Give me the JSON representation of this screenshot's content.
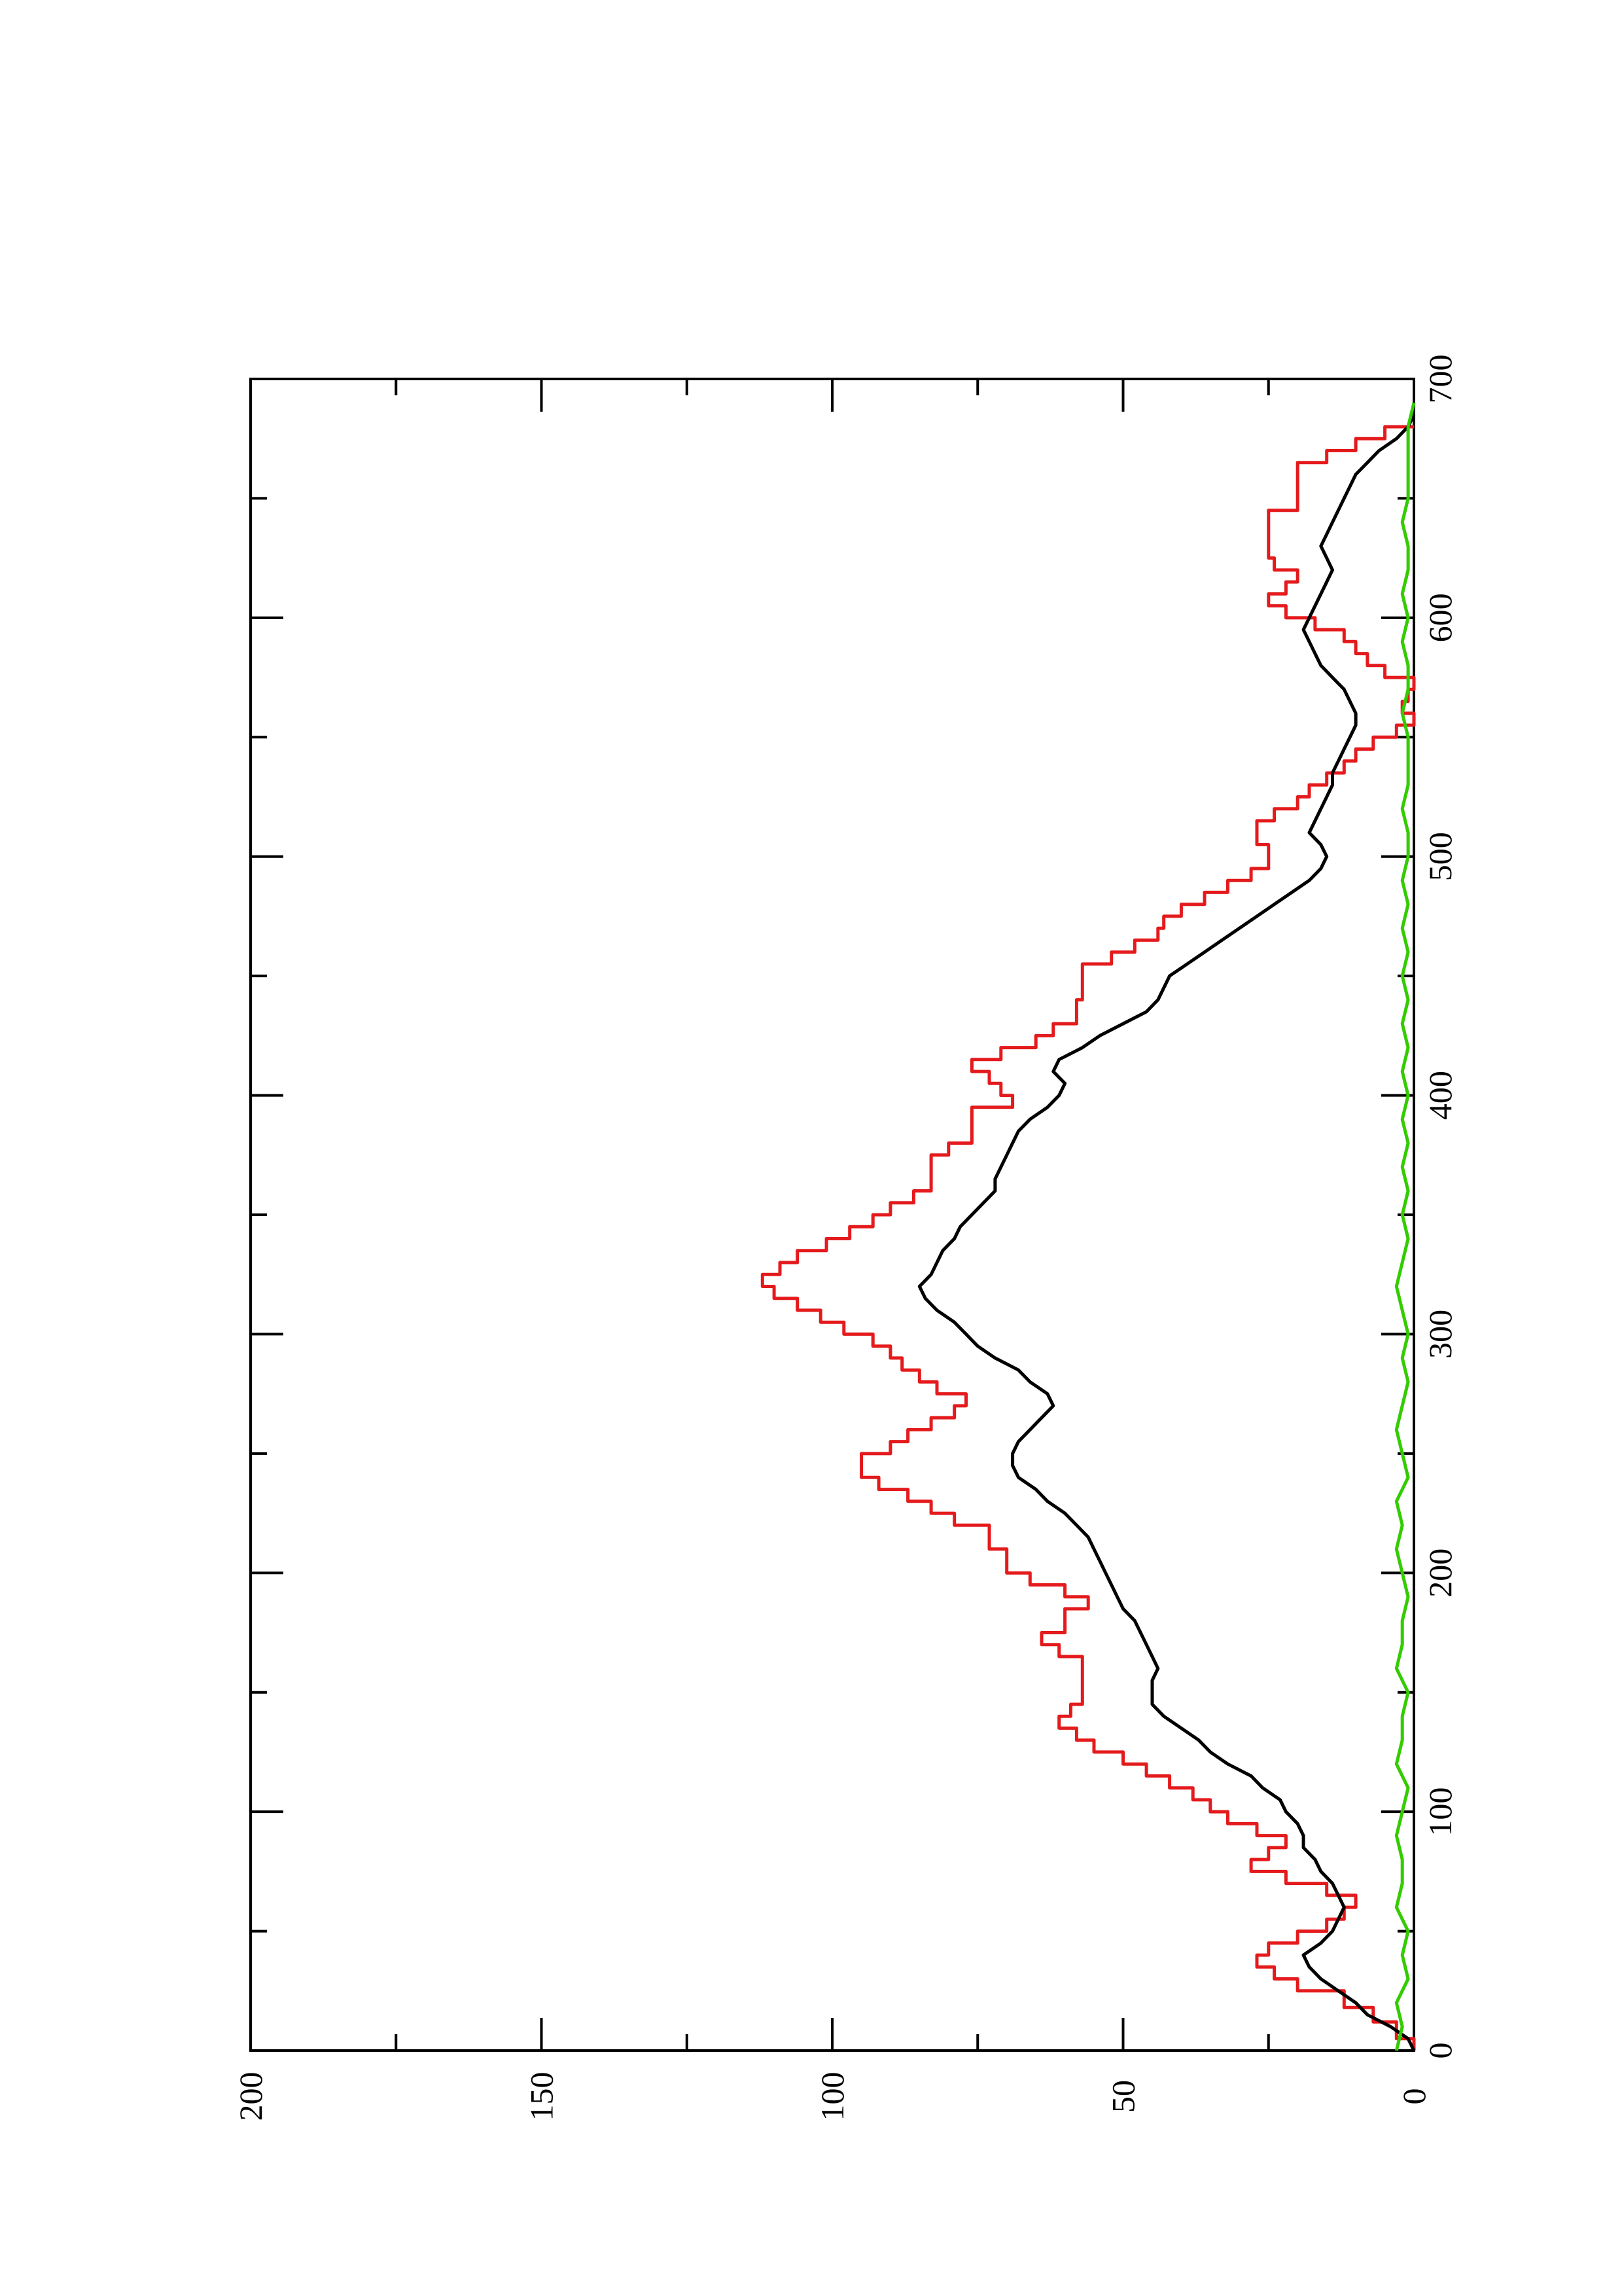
{
  "chart_data": {
    "type": "line",
    "orientation": "rotated-90-ccw",
    "title": "",
    "xlabel": "",
    "ylabel": "",
    "xlim": [
      0,
      700
    ],
    "ylim": [
      0,
      200
    ],
    "x_ticks": [
      "0",
      "100",
      "200",
      "300",
      "400",
      "500",
      "600",
      "700"
    ],
    "y_ticks": [
      "0",
      "50",
      "100",
      "150",
      "200"
    ],
    "grid": false,
    "legend": "none",
    "series": [
      {
        "color": "#e41a1c",
        "step": true,
        "points": [
          [
            0,
            0
          ],
          [
            5,
            3
          ],
          [
            12,
            7
          ],
          [
            18,
            12
          ],
          [
            25,
            20
          ],
          [
            30,
            24
          ],
          [
            35,
            27
          ],
          [
            40,
            25
          ],
          [
            45,
            20
          ],
          [
            50,
            15
          ],
          [
            55,
            12
          ],
          [
            60,
            10
          ],
          [
            65,
            15
          ],
          [
            70,
            22
          ],
          [
            75,
            28
          ],
          [
            80,
            25
          ],
          [
            85,
            22
          ],
          [
            90,
            27
          ],
          [
            95,
            32
          ],
          [
            100,
            35
          ],
          [
            105,
            38
          ],
          [
            110,
            42
          ],
          [
            115,
            46
          ],
          [
            120,
            50
          ],
          [
            125,
            55
          ],
          [
            130,
            58
          ],
          [
            135,
            61
          ],
          [
            140,
            59
          ],
          [
            145,
            57
          ],
          [
            150,
            57
          ],
          [
            160,
            57
          ],
          [
            165,
            61
          ],
          [
            170,
            64
          ],
          [
            175,
            60
          ],
          [
            180,
            60
          ],
          [
            185,
            56
          ],
          [
            190,
            60
          ],
          [
            195,
            66
          ],
          [
            200,
            70
          ],
          [
            210,
            73
          ],
          [
            220,
            79
          ],
          [
            225,
            83
          ],
          [
            230,
            87
          ],
          [
            235,
            92
          ],
          [
            240,
            95
          ],
          [
            245,
            95
          ],
          [
            250,
            90
          ],
          [
            255,
            87
          ],
          [
            260,
            83
          ],
          [
            265,
            79
          ],
          [
            270,
            77
          ],
          [
            275,
            82
          ],
          [
            280,
            85
          ],
          [
            285,
            88
          ],
          [
            290,
            90
          ],
          [
            295,
            93
          ],
          [
            300,
            98
          ],
          [
            305,
            102
          ],
          [
            310,
            106
          ],
          [
            315,
            110
          ],
          [
            320,
            112
          ],
          [
            325,
            109
          ],
          [
            330,
            106
          ],
          [
            335,
            101
          ],
          [
            340,
            97
          ],
          [
            345,
            93
          ],
          [
            350,
            90
          ],
          [
            355,
            86
          ],
          [
            360,
            83
          ],
          [
            370,
            83
          ],
          [
            375,
            80
          ],
          [
            380,
            76
          ],
          [
            390,
            76
          ],
          [
            395,
            69
          ],
          [
            400,
            71
          ],
          [
            405,
            73
          ],
          [
            410,
            76
          ],
          [
            415,
            71
          ],
          [
            420,
            65
          ],
          [
            425,
            62
          ],
          [
            430,
            58
          ],
          [
            440,
            57
          ],
          [
            450,
            57
          ],
          [
            455,
            52
          ],
          [
            460,
            48
          ],
          [
            465,
            44
          ],
          [
            470,
            43
          ],
          [
            475,
            40
          ],
          [
            480,
            36
          ],
          [
            485,
            32
          ],
          [
            490,
            28
          ],
          [
            495,
            25
          ],
          [
            500,
            25
          ],
          [
            505,
            27
          ],
          [
            510,
            27
          ],
          [
            515,
            24
          ],
          [
            520,
            20
          ],
          [
            525,
            18
          ],
          [
            530,
            15
          ],
          [
            535,
            12
          ],
          [
            540,
            10
          ],
          [
            545,
            7
          ],
          [
            550,
            3
          ],
          [
            555,
            0
          ],
          [
            560,
            2
          ],
          [
            565,
            1
          ],
          [
            570,
            0
          ],
          [
            575,
            5
          ],
          [
            580,
            8
          ],
          [
            585,
            10
          ],
          [
            590,
            12
          ],
          [
            595,
            17
          ],
          [
            600,
            22
          ],
          [
            605,
            25
          ],
          [
            610,
            22
          ],
          [
            615,
            20
          ],
          [
            620,
            24
          ],
          [
            625,
            25
          ],
          [
            630,
            25
          ],
          [
            640,
            25
          ],
          [
            645,
            20
          ],
          [
            650,
            20
          ],
          [
            660,
            20
          ],
          [
            665,
            15
          ],
          [
            670,
            10
          ],
          [
            675,
            5
          ],
          [
            680,
            0
          ]
        ]
      },
      {
        "color": "#000000",
        "step": false,
        "points": [
          [
            0,
            0
          ],
          [
            5,
            1
          ],
          [
            10,
            4
          ],
          [
            15,
            8
          ],
          [
            20,
            10
          ],
          [
            25,
            13
          ],
          [
            30,
            16
          ],
          [
            35,
            18
          ],
          [
            40,
            19
          ],
          [
            45,
            16
          ],
          [
            50,
            14
          ],
          [
            55,
            13
          ],
          [
            60,
            12
          ],
          [
            65,
            13
          ],
          [
            70,
            14
          ],
          [
            75,
            16
          ],
          [
            80,
            17
          ],
          [
            85,
            19
          ],
          [
            90,
            19
          ],
          [
            95,
            20
          ],
          [
            100,
            22
          ],
          [
            105,
            23
          ],
          [
            110,
            26
          ],
          [
            115,
            28
          ],
          [
            120,
            32
          ],
          [
            125,
            35
          ],
          [
            130,
            37
          ],
          [
            135,
            40
          ],
          [
            140,
            43
          ],
          [
            145,
            45
          ],
          [
            150,
            45
          ],
          [
            155,
            45
          ],
          [
            160,
            44
          ],
          [
            165,
            45
          ],
          [
            170,
            46
          ],
          [
            175,
            47
          ],
          [
            180,
            48
          ],
          [
            185,
            50
          ],
          [
            190,
            51
          ],
          [
            195,
            52
          ],
          [
            200,
            53
          ],
          [
            205,
            54
          ],
          [
            210,
            55
          ],
          [
            215,
            56
          ],
          [
            220,
            58
          ],
          [
            225,
            60
          ],
          [
            230,
            63
          ],
          [
            235,
            65
          ],
          [
            240,
            68
          ],
          [
            245,
            69
          ],
          [
            250,
            69
          ],
          [
            255,
            68
          ],
          [
            260,
            66
          ],
          [
            265,
            64
          ],
          [
            270,
            62
          ],
          [
            275,
            63
          ],
          [
            280,
            66
          ],
          [
            285,
            68
          ],
          [
            290,
            72
          ],
          [
            295,
            75
          ],
          [
            300,
            77
          ],
          [
            305,
            79
          ],
          [
            310,
            82
          ],
          [
            315,
            84
          ],
          [
            320,
            85
          ],
          [
            325,
            83
          ],
          [
            330,
            82
          ],
          [
            335,
            81
          ],
          [
            340,
            79
          ],
          [
            345,
            78
          ],
          [
            350,
            76
          ],
          [
            355,
            74
          ],
          [
            360,
            72
          ],
          [
            365,
            72
          ],
          [
            370,
            71
          ],
          [
            375,
            70
          ],
          [
            380,
            69
          ],
          [
            385,
            68
          ],
          [
            390,
            66
          ],
          [
            395,
            63
          ],
          [
            400,
            61
          ],
          [
            405,
            60
          ],
          [
            410,
            62
          ],
          [
            415,
            61
          ],
          [
            420,
            57
          ],
          [
            425,
            54
          ],
          [
            430,
            50
          ],
          [
            435,
            46
          ],
          [
            440,
            44
          ],
          [
            445,
            43
          ],
          [
            450,
            42
          ],
          [
            455,
            39
          ],
          [
            460,
            36
          ],
          [
            465,
            33
          ],
          [
            470,
            30
          ],
          [
            475,
            27
          ],
          [
            480,
            24
          ],
          [
            485,
            21
          ],
          [
            490,
            18
          ],
          [
            495,
            16
          ],
          [
            500,
            15
          ],
          [
            505,
            16
          ],
          [
            510,
            18
          ],
          [
            515,
            17
          ],
          [
            520,
            16
          ],
          [
            525,
            15
          ],
          [
            530,
            14
          ],
          [
            535,
            14
          ],
          [
            540,
            13
          ],
          [
            545,
            12
          ],
          [
            550,
            11
          ],
          [
            555,
            10
          ],
          [
            560,
            10
          ],
          [
            565,
            11
          ],
          [
            570,
            12
          ],
          [
            575,
            14
          ],
          [
            580,
            16
          ],
          [
            585,
            17
          ],
          [
            590,
            18
          ],
          [
            595,
            19
          ],
          [
            600,
            18
          ],
          [
            605,
            17
          ],
          [
            610,
            16
          ],
          [
            615,
            15
          ],
          [
            620,
            14
          ],
          [
            625,
            15
          ],
          [
            630,
            16
          ],
          [
            635,
            15
          ],
          [
            640,
            14
          ],
          [
            645,
            13
          ],
          [
            650,
            12
          ],
          [
            655,
            11
          ],
          [
            660,
            10
          ],
          [
            665,
            8
          ],
          [
            670,
            6
          ],
          [
            675,
            3
          ],
          [
            680,
            1
          ],
          [
            685,
            0
          ]
        ]
      },
      {
        "color": "#33cc00",
        "step": false,
        "points": [
          [
            0,
            3
          ],
          [
            10,
            2
          ],
          [
            20,
            3
          ],
          [
            30,
            1
          ],
          [
            40,
            2
          ],
          [
            50,
            1
          ],
          [
            60,
            3
          ],
          [
            70,
            2
          ],
          [
            80,
            2
          ],
          [
            90,
            3
          ],
          [
            100,
            2
          ],
          [
            110,
            1
          ],
          [
            120,
            3
          ],
          [
            130,
            2
          ],
          [
            140,
            2
          ],
          [
            150,
            1
          ],
          [
            160,
            3
          ],
          [
            170,
            2
          ],
          [
            180,
            2
          ],
          [
            190,
            1
          ],
          [
            200,
            2
          ],
          [
            210,
            3
          ],
          [
            220,
            2
          ],
          [
            230,
            3
          ],
          [
            240,
            1
          ],
          [
            250,
            2
          ],
          [
            260,
            3
          ],
          [
            270,
            2
          ],
          [
            280,
            1
          ],
          [
            290,
            2
          ],
          [
            300,
            1
          ],
          [
            310,
            2
          ],
          [
            320,
            3
          ],
          [
            330,
            2
          ],
          [
            340,
            1
          ],
          [
            350,
            2
          ],
          [
            360,
            1
          ],
          [
            370,
            2
          ],
          [
            380,
            1
          ],
          [
            390,
            2
          ],
          [
            400,
            1
          ],
          [
            410,
            2
          ],
          [
            420,
            1
          ],
          [
            430,
            2
          ],
          [
            440,
            1
          ],
          [
            450,
            2
          ],
          [
            460,
            1
          ],
          [
            470,
            2
          ],
          [
            480,
            1
          ],
          [
            490,
            2
          ],
          [
            500,
            1
          ],
          [
            510,
            1
          ],
          [
            520,
            2
          ],
          [
            530,
            1
          ],
          [
            540,
            1
          ],
          [
            550,
            1
          ],
          [
            560,
            2
          ],
          [
            570,
            1
          ],
          [
            580,
            1
          ],
          [
            590,
            2
          ],
          [
            600,
            1
          ],
          [
            610,
            2
          ],
          [
            620,
            1
          ],
          [
            630,
            1
          ],
          [
            640,
            2
          ],
          [
            650,
            1
          ],
          [
            660,
            1
          ],
          [
            670,
            1
          ],
          [
            680,
            1
          ],
          [
            690,
            0
          ]
        ]
      }
    ]
  }
}
